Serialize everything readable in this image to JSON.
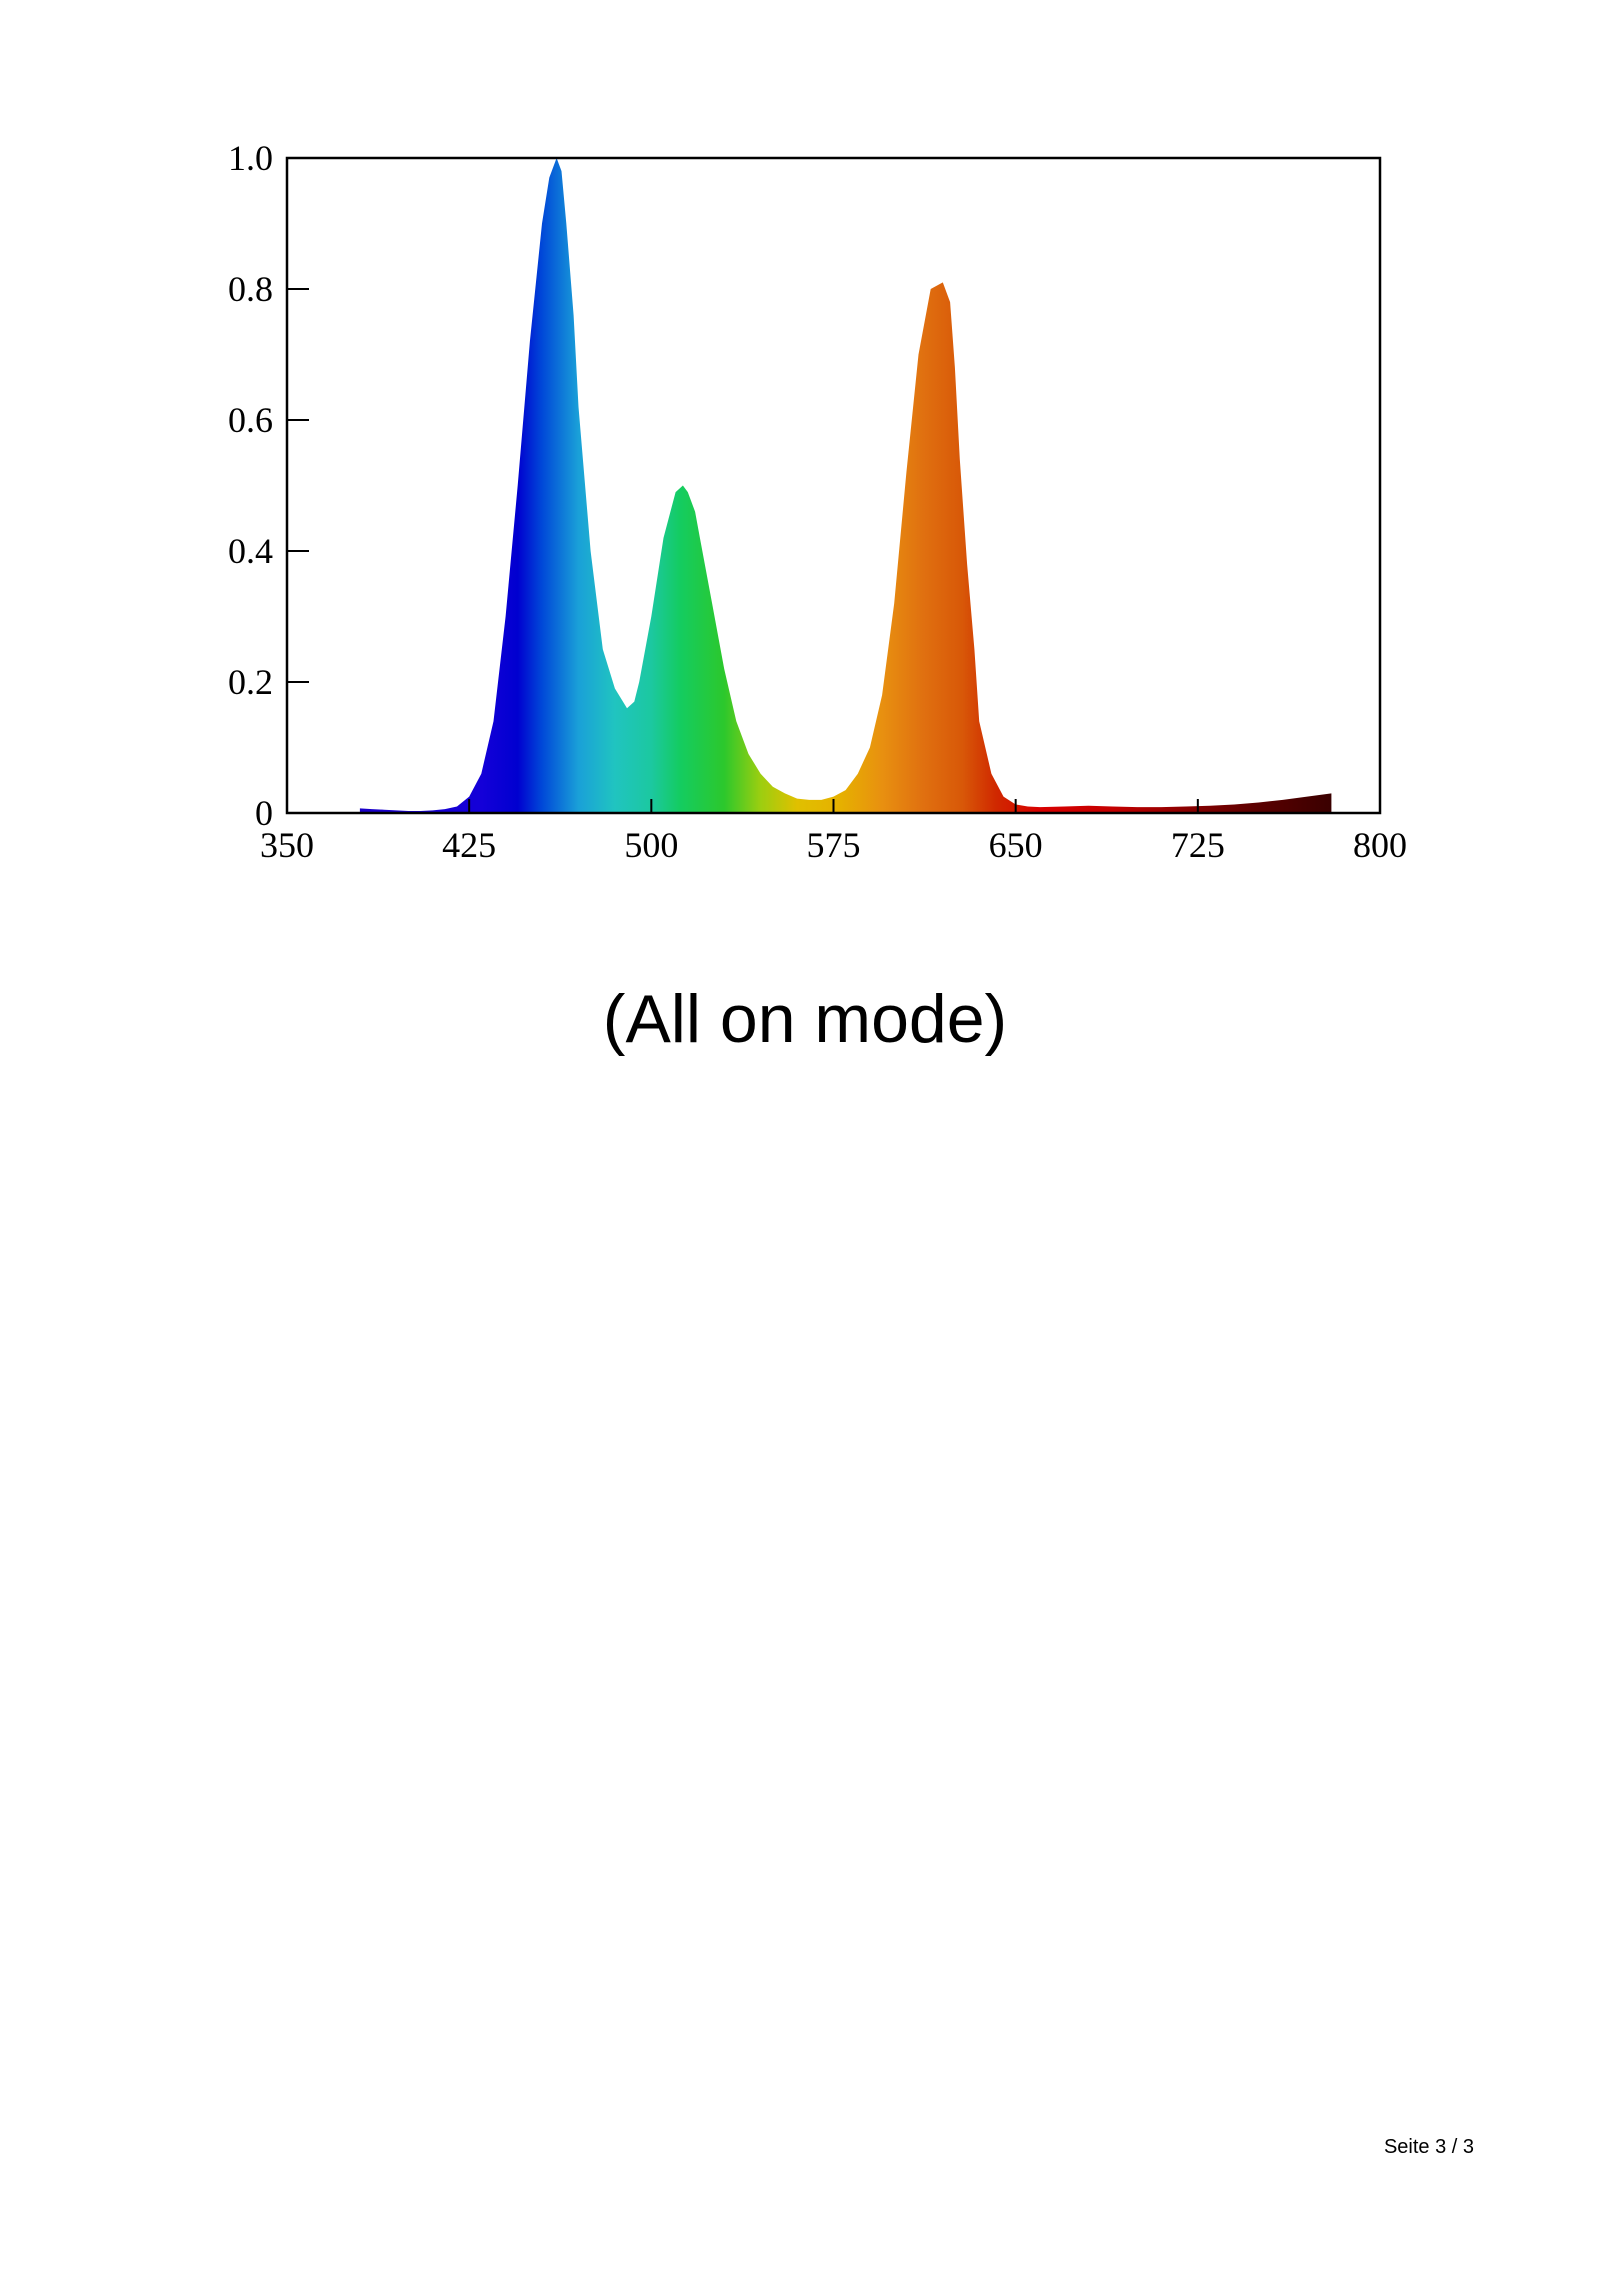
{
  "caption": "(All on mode)",
  "footer": {
    "page_number": "Seite 3 / 3"
  },
  "chart_data": {
    "type": "area",
    "title": "",
    "xlabel": "",
    "ylabel": "",
    "xlim": [
      350,
      800
    ],
    "ylim": [
      0,
      1.0
    ],
    "x_ticks": [
      350,
      425,
      500,
      575,
      650,
      725,
      800
    ],
    "x_tick_labels": [
      "350",
      "425",
      "500",
      "575",
      "650",
      "725",
      "800"
    ],
    "y_ticks": [
      0,
      0.2,
      0.4,
      0.6,
      0.8,
      1.0
    ],
    "y_tick_labels": [
      "0",
      "0.2",
      "0.4",
      "0.6",
      "0.8",
      "1.0"
    ],
    "fill": "spectral gradient (wavelength colors)",
    "grid": false,
    "series": [
      {
        "x": [
          380,
          385,
          390,
          395,
          400,
          405,
          410,
          415,
          420,
          425,
          430,
          435,
          440,
          445,
          450,
          455,
          458,
          461,
          463,
          465,
          468,
          470,
          475,
          480,
          485,
          490,
          493,
          495,
          500,
          505,
          510,
          513,
          515,
          518,
          520,
          525,
          530,
          535,
          540,
          545,
          550,
          555,
          560,
          565,
          570,
          575,
          580,
          585,
          590,
          595,
          600,
          605,
          610,
          615,
          620,
          623,
          625,
          627,
          630,
          633,
          635,
          640,
          645,
          650,
          655,
          660,
          670,
          680,
          690,
          700,
          710,
          720,
          730,
          740,
          750,
          760,
          770,
          780
        ],
        "y": [
          0.007,
          0.006,
          0.005,
          0.004,
          0.003,
          0.003,
          0.004,
          0.006,
          0.01,
          0.025,
          0.06,
          0.14,
          0.3,
          0.5,
          0.72,
          0.9,
          0.97,
          1.0,
          0.98,
          0.9,
          0.76,
          0.62,
          0.4,
          0.25,
          0.19,
          0.16,
          0.17,
          0.2,
          0.3,
          0.42,
          0.49,
          0.5,
          0.49,
          0.46,
          0.42,
          0.32,
          0.22,
          0.14,
          0.09,
          0.06,
          0.04,
          0.03,
          0.022,
          0.02,
          0.02,
          0.025,
          0.035,
          0.06,
          0.1,
          0.18,
          0.32,
          0.52,
          0.7,
          0.8,
          0.81,
          0.78,
          0.68,
          0.54,
          0.38,
          0.25,
          0.14,
          0.06,
          0.025,
          0.013,
          0.01,
          0.009,
          0.01,
          0.011,
          0.01,
          0.009,
          0.009,
          0.01,
          0.011,
          0.013,
          0.016,
          0.02,
          0.025,
          0.03
        ]
      }
    ]
  }
}
